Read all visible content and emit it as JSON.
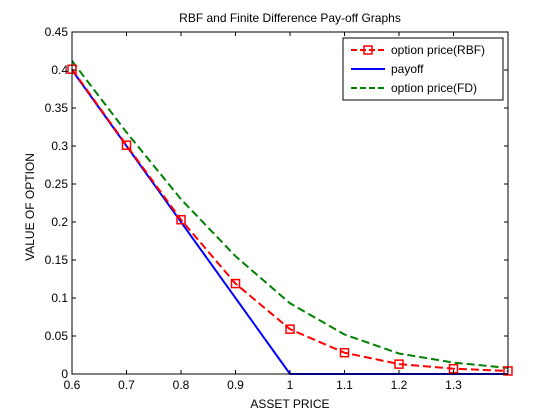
{
  "chart_data": {
    "type": "line",
    "title": "RBF and Finite Difference Pay-off Graphs",
    "xlabel": "ASSET PRICE",
    "ylabel": "VALUE OF OPTION",
    "xlim": [
      0.6,
      1.4
    ],
    "ylim": [
      0,
      0.45
    ],
    "xticks": [
      "0.6",
      "0.7",
      "0.8",
      "0.9",
      "1",
      "1.1",
      "1.2",
      "1.3"
    ],
    "xtick_values": [
      0.6,
      0.7,
      0.8,
      0.9,
      1.0,
      1.1,
      1.2,
      1.3
    ],
    "yticks": [
      "0",
      "0.05",
      "0.1",
      "0.15",
      "0.2",
      "0.25",
      "0.3",
      "0.35",
      "0.4",
      "0.45"
    ],
    "ytick_values": [
      0,
      0.05,
      0.1,
      0.15,
      0.2,
      0.25,
      0.3,
      0.35,
      0.4,
      0.45
    ],
    "grid": false,
    "legend_position": "top-right",
    "series": [
      {
        "name": "option price(RBF)",
        "color": "#ff0000",
        "line_style": "dashed",
        "marker": "square",
        "x": [
          0.6,
          0.7,
          0.8,
          0.9,
          1.0,
          1.1,
          1.2,
          1.3,
          1.4
        ],
        "y": [
          0.401,
          0.301,
          0.203,
          0.119,
          0.059,
          0.028,
          0.013,
          0.007,
          0.004
        ]
      },
      {
        "name": "payoff",
        "color": "#0000ff",
        "line_style": "solid",
        "marker": "none",
        "x": [
          0.6,
          1.0,
          1.4
        ],
        "y": [
          0.4,
          0.0,
          0.0
        ]
      },
      {
        "name": "option price(FD)",
        "color": "#008000",
        "line_style": "dashed",
        "marker": "none",
        "x": [
          0.6,
          0.7,
          0.8,
          0.9,
          1.0,
          1.1,
          1.2,
          1.3,
          1.4
        ],
        "y": [
          0.412,
          0.318,
          0.23,
          0.155,
          0.093,
          0.052,
          0.027,
          0.015,
          0.008
        ]
      }
    ]
  }
}
